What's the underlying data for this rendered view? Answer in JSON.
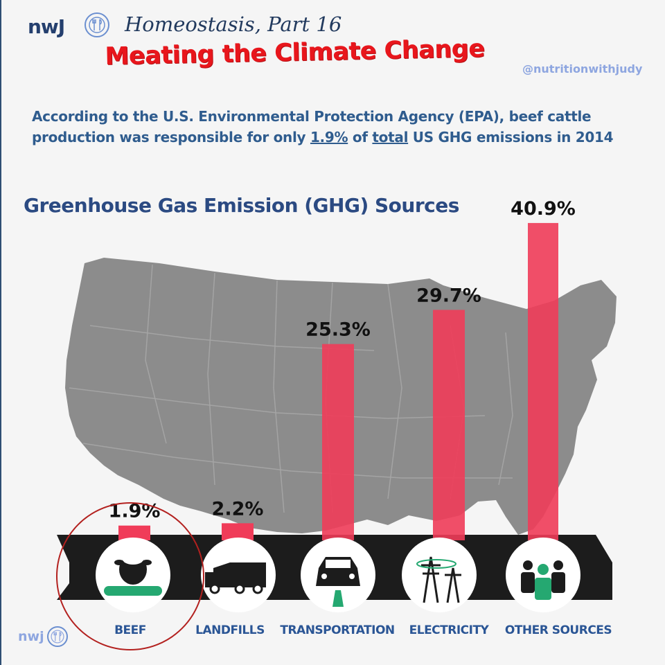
{
  "header": {
    "brand": "nwJ",
    "series_title": "Homeostasis, Part 16",
    "headline": "Meating the Climate Change",
    "handle": "@nutritionwithjudy"
  },
  "intro": {
    "part1": "According to the U.S. Environmental Protection Agency (EPA), beef cattle production was responsible for only",
    "highlight_value": "1.9%",
    "part2": "of",
    "highlight_word": "total",
    "part3": "US GHG emissions in 2014"
  },
  "footer": {
    "brand": "nwj"
  },
  "colors": {
    "bar": "#f03c59",
    "map": "#8c8c8c",
    "stage": "#1c1c1c",
    "label": "#2a5595",
    "headline": "#e8161c",
    "highlight_circle": "#b3211f",
    "icon_accent": "#25a871"
  },
  "chart_data": {
    "type": "bar",
    "title": "Greenhouse Gas Emission (GHG) Sources",
    "categories": [
      "BEEF",
      "LANDFILLS",
      "TRANSPORTATION",
      "ELECTRICITY",
      "OTHER SOURCES"
    ],
    "values": [
      1.9,
      2.2,
      25.3,
      29.7,
      40.9
    ],
    "value_labels": [
      "1.9%",
      "2.2%",
      "25.3%",
      "29.7%",
      "40.9%"
    ],
    "icons": [
      "cow-icon",
      "garbage-truck-icon",
      "car-icon",
      "power-tower-icon",
      "people-icon"
    ],
    "highlighted_category": "BEEF",
    "background": "US map",
    "grid": false
  }
}
